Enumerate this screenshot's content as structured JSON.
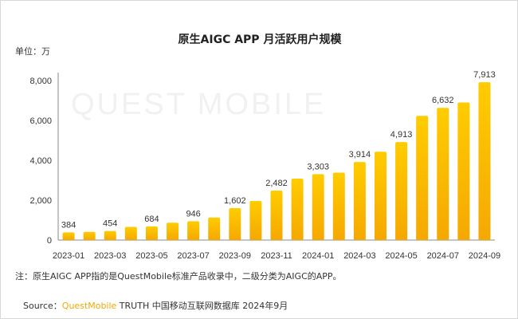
{
  "chart_data": {
    "type": "bar",
    "title": "原生AIGC APP 月活跃用户规模",
    "unit_label": "单位：万",
    "categories": [
      "2023-01",
      "2023-02",
      "2023-03",
      "2023-04",
      "2023-05",
      "2023-06",
      "2023-07",
      "2023-08",
      "2023-09",
      "2023-10",
      "2023-11",
      "2023-12",
      "2024-01",
      "2024-02",
      "2024-03",
      "2024-04",
      "2024-05",
      "2024-06",
      "2024-07",
      "2024-08",
      "2024-09"
    ],
    "values": [
      384,
      410,
      454,
      660,
      684,
      870,
      946,
      1130,
      1602,
      1960,
      2482,
      3080,
      3303,
      3380,
      3914,
      4430,
      4913,
      6230,
      6632,
      6900,
      7913
    ],
    "data_labels": [
      "384",
      "",
      "454",
      "",
      "684",
      "",
      "946",
      "",
      "1,602",
      "",
      "2,482",
      "",
      "3,303",
      "",
      "3,914",
      "",
      "4,913",
      "",
      "6,632",
      "",
      "7,913"
    ],
    "x_tick_labels": [
      "2023-01",
      "",
      "2023-03",
      "",
      "2023-05",
      "",
      "2023-07",
      "",
      "2023-09",
      "",
      "2023-11",
      "",
      "2024-01",
      "",
      "2024-03",
      "",
      "2024-05",
      "",
      "2024-07",
      "",
      "2024-09"
    ],
    "y_ticks": [
      "0",
      "2,000",
      "4,000",
      "6,000",
      "8,000"
    ],
    "y_tick_values": [
      0,
      2000,
      4000,
      6000,
      8000
    ],
    "ylim": [
      0,
      8000
    ],
    "grid": false,
    "bar_color_top": "#ffcc00",
    "bar_color_bottom": "#f5a800"
  },
  "watermark": "QUEST MOBILE",
  "footnote": "注：原生AIGC APP指的是QuestMobile标准产品收录中，二级分类为AIGC的APP。",
  "source": {
    "prefix": "Source：",
    "brand": "QuestMobile",
    "rest": " TRUTH 中国移动互联网数据库 2024年9月"
  }
}
